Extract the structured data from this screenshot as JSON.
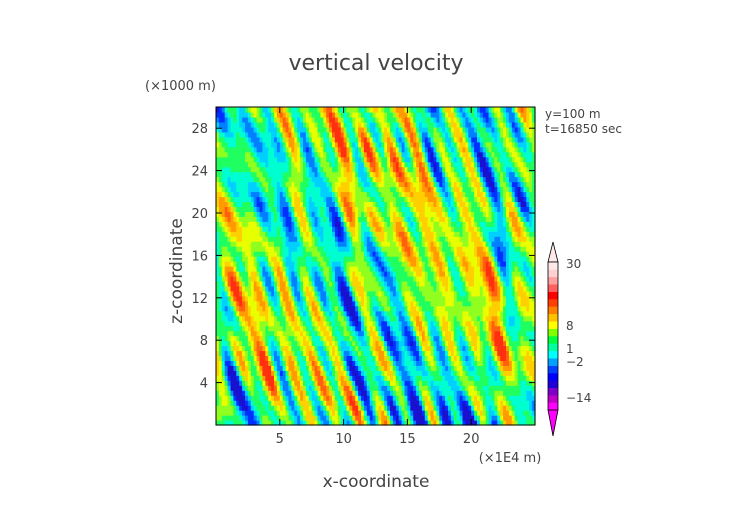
{
  "chart_data": {
    "type": "heatmap",
    "title": "vertical velocity",
    "xlabel": "x-coordinate",
    "ylabel": "z-coordinate",
    "x_unit": "(×1E4 m)",
    "y_unit": "(×1000 m)",
    "x_ticks": [
      5,
      10,
      15,
      20
    ],
    "y_ticks": [
      4,
      8,
      12,
      16,
      20,
      24,
      28
    ],
    "xlim": [
      0,
      25
    ],
    "ylim": [
      0,
      30
    ],
    "annotations": [
      "y=100 m",
      "t=16850 sec"
    ],
    "colorbar": {
      "tick_labels": [
        "30",
        "8",
        "1",
        "−2",
        "−14"
      ],
      "tick_values": [
        30,
        8,
        1,
        -2,
        -14
      ],
      "colors": [
        "#ff00ff",
        "#c000c8",
        "#8000c8",
        "#2000d8",
        "#0000ff",
        "#0040ff",
        "#00a0ff",
        "#00ffff",
        "#00ffa0",
        "#00ff40",
        "#80ff00",
        "#ffff00",
        "#ffc000",
        "#ff8000",
        "#ff4000",
        "#ff0000",
        "#ff6060",
        "#ffa0a0",
        "#ffd0d0",
        "#ffe8e8"
      ]
    },
    "grid": false
  }
}
